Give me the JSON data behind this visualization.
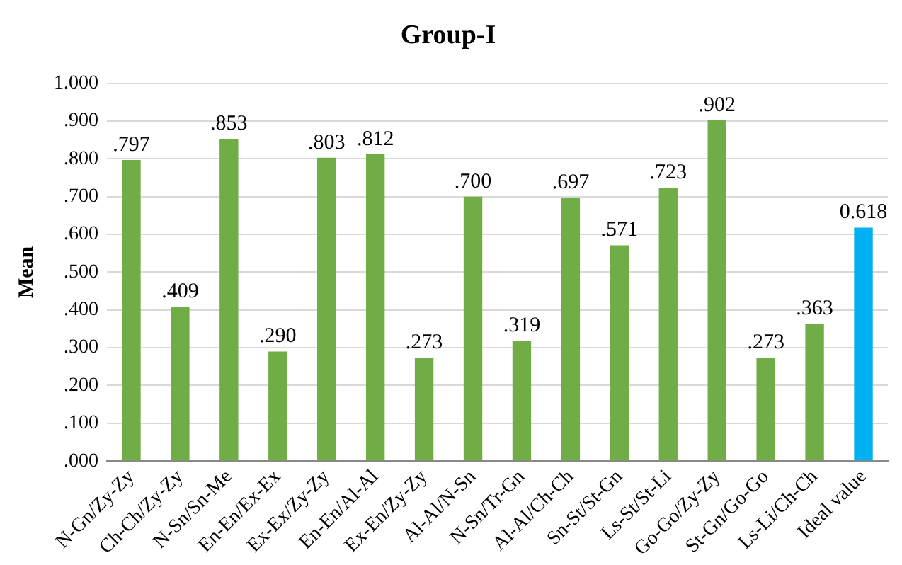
{
  "chart_data": {
    "type": "bar",
    "title": "Group-I",
    "ylabel": "Mean",
    "categories": [
      "N-Gn/Zy-Zy",
      "Ch-Ch/Zy-Zy",
      "N-Sn/Sn-Me",
      "En-En/Ex-Ex",
      "Ex-Ex/Zy-Zy",
      "En-En/Al-Al",
      "Ex-En/Zy-Zy",
      "Al-Al/N-Sn",
      "N-Sn/Tr-Gn",
      "Al-Al/Ch-Ch",
      "Sn-St/St-Gn",
      "Ls-St/St-Li",
      "Go-Go/Zy-Zy",
      "St-Gn/Go-Go",
      "Ls-Li/Ch-Ch",
      "Ideal value"
    ],
    "values": [
      0.797,
      0.409,
      0.853,
      0.29,
      0.803,
      0.812,
      0.273,
      0.7,
      0.319,
      0.697,
      0.571,
      0.723,
      0.902,
      0.273,
      0.363,
      0.618
    ],
    "value_labels": [
      ".797",
      ".409",
      ".853",
      ".290",
      ".803",
      ".812",
      ".273",
      ".700",
      ".319",
      ".697",
      ".571",
      ".723",
      ".902",
      ".273",
      ".363",
      "0.618"
    ],
    "colors": [
      "#70ad47",
      "#70ad47",
      "#70ad47",
      "#70ad47",
      "#70ad47",
      "#70ad47",
      "#70ad47",
      "#70ad47",
      "#70ad47",
      "#70ad47",
      "#70ad47",
      "#70ad47",
      "#70ad47",
      "#70ad47",
      "#70ad47",
      "#00b0f0"
    ],
    "ylim": [
      0,
      1
    ],
    "yticks": [
      {
        "value": 0,
        "label": ".000"
      },
      {
        "value": 0.1,
        "label": ".100"
      },
      {
        "value": 0.2,
        "label": ".200"
      },
      {
        "value": 0.3,
        "label": ".300"
      },
      {
        "value": 0.4,
        "label": ".400"
      },
      {
        "value": 0.5,
        "label": ".500"
      },
      {
        "value": 0.6,
        "label": ".600"
      },
      {
        "value": 0.7,
        "label": ".700"
      },
      {
        "value": 0.8,
        "label": ".800"
      },
      {
        "value": 0.9,
        "label": ".900"
      },
      {
        "value": 1,
        "label": "1.000"
      }
    ],
    "grid": "y",
    "legend": false
  }
}
